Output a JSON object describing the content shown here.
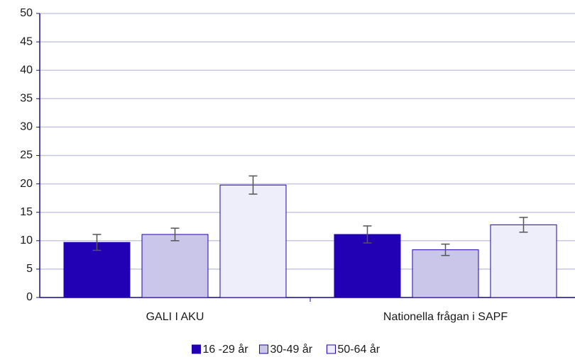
{
  "chart_data": {
    "type": "bar",
    "categories": [
      "GALI I AKU",
      "Nationella frågan i SAPF"
    ],
    "series": [
      {
        "name": "16 -29 år",
        "color": "#2200b4",
        "values": [
          9.7,
          11.1
        ],
        "errors": [
          1.4,
          1.5
        ]
      },
      {
        "name": "30-49 år",
        "color": "#cac6ea",
        "values": [
          11.1,
          8.4
        ],
        "errors": [
          1.1,
          1.0
        ]
      },
      {
        "name": "50-64 år",
        "color": "#eeeefa",
        "values": [
          19.8,
          12.8
        ],
        "errors": [
          1.6,
          1.3
        ]
      }
    ],
    "ylim": [
      0,
      50
    ],
    "yticks": [
      0,
      5,
      10,
      15,
      20,
      25,
      30,
      35,
      40,
      45,
      50
    ],
    "grid": true,
    "legend": "bottom"
  }
}
